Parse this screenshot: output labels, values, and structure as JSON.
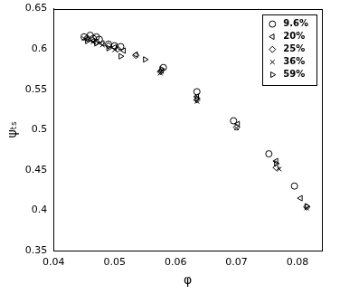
{
  "chart_data": {
    "type": "scatter",
    "x_label": "φ",
    "y_label": "ψₜₛ",
    "xlim": [
      0.04,
      0.084
    ],
    "xticks": [
      0.04,
      0.05,
      0.06,
      0.07,
      0.08
    ],
    "ylim": [
      0.35,
      0.65
    ],
    "yticks": [
      0.35,
      0.4,
      0.45,
      0.5,
      0.55,
      0.6,
      0.65
    ],
    "grid": false,
    "legend": "top-right",
    "series": [
      {
        "name": "9.6%",
        "color": "#000000",
        "marker": "circle",
        "x": [
          0.045,
          0.046,
          0.0465,
          0.047,
          0.0475,
          0.049,
          0.05,
          0.051,
          0.058,
          0.0635,
          0.0695,
          0.0753,
          0.0795
        ],
        "values": [
          0.615,
          0.617,
          0.613,
          0.615,
          0.612,
          0.606,
          0.604,
          0.603,
          0.577,
          0.547,
          0.511,
          0.47,
          0.43
        ]
      },
      {
        "name": "20%",
        "color": "#000000",
        "marker": "triangle-left",
        "x": [
          0.0455,
          0.0465,
          0.048,
          0.05,
          0.0515,
          0.0535,
          0.0577,
          0.0635,
          0.0702,
          0.0765,
          0.0805
        ],
        "values": [
          0.612,
          0.61,
          0.607,
          0.602,
          0.598,
          0.593,
          0.573,
          0.541,
          0.507,
          0.461,
          0.415
        ]
      },
      {
        "name": "25%",
        "color": "#000000",
        "marker": "diamond",
        "x": [
          0.0455,
          0.047,
          0.049,
          0.0505,
          0.0535,
          0.0575,
          0.0635,
          0.07,
          0.0765,
          0.0815
        ],
        "values": [
          0.614,
          0.609,
          0.604,
          0.6,
          0.592,
          0.572,
          0.537,
          0.503,
          0.453,
          0.404
        ]
      },
      {
        "name": "36%",
        "color": "#000000",
        "marker": "x",
        "x": [
          0.045,
          0.0465,
          0.048,
          0.05,
          0.0575,
          0.0635,
          0.07,
          0.077,
          0.0815
        ],
        "values": [
          0.613,
          0.609,
          0.605,
          0.599,
          0.57,
          0.535,
          0.502,
          0.451,
          0.403
        ]
      },
      {
        "name": "59%",
        "color": "#000000",
        "marker": "triangle-right",
        "x": [
          0.0455,
          0.047,
          0.049,
          0.051,
          0.055,
          0.0577,
          0.0635,
          0.0765,
          0.0815
        ],
        "values": [
          0.61,
          0.607,
          0.601,
          0.591,
          0.587,
          0.575,
          0.539,
          0.458,
          0.405
        ]
      }
    ]
  }
}
